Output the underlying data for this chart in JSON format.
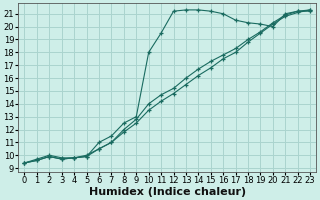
{
  "xlabel": "Humidex (Indice chaleur)",
  "bg_color": "#ceeee8",
  "grid_color": "#aad4ce",
  "line_color": "#1a6b60",
  "xlim": [
    -0.5,
    23.5
  ],
  "ylim": [
    8.7,
    21.8
  ],
  "xticks": [
    0,
    1,
    2,
    3,
    4,
    5,
    6,
    7,
    8,
    9,
    10,
    11,
    12,
    13,
    14,
    15,
    16,
    17,
    18,
    19,
    20,
    21,
    22,
    23
  ],
  "yticks": [
    9,
    10,
    11,
    12,
    13,
    14,
    15,
    16,
    17,
    18,
    19,
    20,
    21
  ],
  "series1_x": [
    0,
    1,
    2,
    3,
    4,
    5,
    6,
    7,
    8,
    9,
    10,
    11,
    12,
    13,
    14,
    15,
    16,
    17,
    18,
    19,
    20,
    21,
    22,
    23
  ],
  "series1_y": [
    9.4,
    9.7,
    10.0,
    9.8,
    9.8,
    9.9,
    11.0,
    11.5,
    12.5,
    13.0,
    18.0,
    19.5,
    21.2,
    21.3,
    21.3,
    21.2,
    21.0,
    20.5,
    20.3,
    20.2,
    20.0,
    21.0,
    21.2,
    21.2
  ],
  "series2_x": [
    0,
    1,
    2,
    3,
    4,
    5,
    6,
    7,
    8,
    9,
    10,
    11,
    12,
    13,
    14,
    15,
    16,
    17,
    18,
    19,
    20,
    21,
    22,
    23
  ],
  "series2_y": [
    9.4,
    9.6,
    9.9,
    9.7,
    9.8,
    10.0,
    10.5,
    11.0,
    11.8,
    12.5,
    13.5,
    14.2,
    14.8,
    15.5,
    16.2,
    16.8,
    17.5,
    18.0,
    18.8,
    19.5,
    20.2,
    20.8,
    21.1,
    21.3
  ],
  "series3_x": [
    0,
    1,
    2,
    3,
    4,
    5,
    6,
    7,
    8,
    9,
    10,
    11,
    12,
    13,
    14,
    15,
    16,
    17,
    18,
    19,
    20,
    21,
    22,
    23
  ],
  "series3_y": [
    9.4,
    9.6,
    9.9,
    9.7,
    9.8,
    9.9,
    10.5,
    11.0,
    12.0,
    12.8,
    14.0,
    14.7,
    15.2,
    16.0,
    16.7,
    17.3,
    17.8,
    18.3,
    19.0,
    19.6,
    20.3,
    20.9,
    21.2,
    21.3
  ],
  "tick_fontsize": 6,
  "xlabel_fontsize": 8
}
